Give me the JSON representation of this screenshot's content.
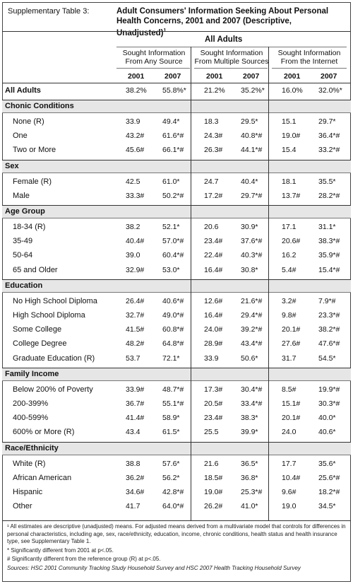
{
  "table_label": "Supplementary Table 3:",
  "title": "Adult Consumers' Information Seeking About Personal Health Concerns, 2001 and 2007 (Descriptive, Unadjusted)",
  "title_footnote_marker": "1",
  "super_header": "All Adults",
  "column_groups": [
    "Sought Information From Any Source",
    "Sought Information From Multiple Sources",
    "Sought Information From the Internet"
  ],
  "years": [
    "2001",
    "2007",
    "2001",
    "2007",
    "2001",
    "2007"
  ],
  "all_adults_row": {
    "label": "All Adults",
    "values": [
      "38.2%",
      "55.8%*",
      "21.2%",
      "35.2%*",
      "16.0%",
      "32.0%*"
    ]
  },
  "sections": [
    {
      "heading": "Chonic Conditions",
      "rows": [
        {
          "label": "None (R)",
          "values": [
            "33.9",
            "49.4*",
            "18.3",
            "29.5*",
            "15.1",
            "29.7*"
          ]
        },
        {
          "label": "One",
          "values": [
            "43.2#",
            "61.6*#",
            "24.3#",
            "40.8*#",
            "19.0#",
            "36.4*#"
          ]
        },
        {
          "label": "Two or More",
          "values": [
            "45.6#",
            "66.1*#",
            "26.3#",
            "44.1*#",
            "15.4",
            "33.2*#"
          ]
        }
      ]
    },
    {
      "heading": "Sex",
      "rows": [
        {
          "label": "Female (R)",
          "values": [
            "42.5",
            "61.0*",
            "24.7",
            "40.4*",
            "18.1",
            "35.5*"
          ]
        },
        {
          "label": "Male",
          "values": [
            "33.3#",
            "50.2*#",
            "17.2#",
            "29.7*#",
            "13.7#",
            "28.2*#"
          ]
        }
      ]
    },
    {
      "heading": "Age Group",
      "rows": [
        {
          "label": "18-34 (R)",
          "values": [
            "38.2",
            "52.1*",
            "20.6",
            "30.9*",
            "17.1",
            "31.1*"
          ]
        },
        {
          "label": "35-49",
          "values": [
            "40.4#",
            "57.0*#",
            "23.4#",
            "37.6*#",
            "20.6#",
            "38.3*#"
          ]
        },
        {
          "label": "50-64",
          "values": [
            "39.0",
            "60.4*#",
            "22.4#",
            "40.3*#",
            "16.2",
            "35.9*#"
          ]
        },
        {
          "label": "65 and Older",
          "values": [
            "32.9#",
            "53.0*",
            "16.4#",
            "30.8*",
            "5.4#",
            "15.4*#"
          ]
        }
      ]
    },
    {
      "heading": "Education",
      "rows": [
        {
          "label": "No High School Diploma",
          "values": [
            "26.4#",
            "40.6*#",
            "12.6#",
            "21.6*#",
            "3.2#",
            "7.9*#"
          ]
        },
        {
          "label": "High School Diploma",
          "values": [
            "32.7#",
            "49.0*#",
            "16.4#",
            "29.4*#",
            "9.8#",
            "23.3*#"
          ]
        },
        {
          "label": "Some College",
          "values": [
            "41.5#",
            "60.8*#",
            "24.0#",
            "39.2*#",
            "20.1#",
            "38.2*#"
          ]
        },
        {
          "label": "College Degree",
          "values": [
            "48.2#",
            "64.8*#",
            "28.9#",
            "43.4*#",
            "27.6#",
            "47.6*#"
          ]
        },
        {
          "label": "Graduate Education (R)",
          "values": [
            "53.7",
            "72.1*",
            "33.9",
            "50.6*",
            "31.7",
            "54.5*"
          ]
        }
      ]
    },
    {
      "heading": "Family Income",
      "rows": [
        {
          "label": "Below 200% of Poverty",
          "values": [
            "33.9#",
            "48.7*#",
            "17.3#",
            "30.4*#",
            "8.5#",
            "19.9*#"
          ]
        },
        {
          "label": "200-399%",
          "values": [
            "36.7#",
            "55.1*#",
            "20.5#",
            "33.4*#",
            "15.1#",
            "30.3*#"
          ]
        },
        {
          "label": "400-599%",
          "values": [
            "41.4#",
            "58.9*",
            "23.4#",
            "38.3*",
            "20.1#",
            "40.0*"
          ]
        },
        {
          "label": "600% or More (R)",
          "values": [
            "43.4",
            "61.5*",
            "25.5",
            "39.9*",
            "24.0",
            "40.6*"
          ]
        }
      ]
    },
    {
      "heading": "Race/Ethnicity",
      "rows": [
        {
          "label": "White (R)",
          "values": [
            "38.8",
            "57.6*",
            "21.6",
            "36.5*",
            "17.7",
            "35.6*"
          ]
        },
        {
          "label": "African American",
          "values": [
            "36.2#",
            "56.2*",
            "18.5#",
            "36.8*",
            "10.4#",
            "25.6*#"
          ]
        },
        {
          "label": "Hispanic",
          "values": [
            "34.6#",
            "42.8*#",
            "19.0#",
            "25.3*#",
            "9.6#",
            "18.2*#"
          ]
        },
        {
          "label": "Other",
          "values": [
            "41.7",
            "64.0*#",
            "26.2#",
            "41.0*",
            "19.0",
            "34.5*"
          ]
        }
      ]
    }
  ],
  "footnotes": {
    "note1": "¹ All estimates are descriptive (unadjusted) means. For adjusted means derived from a multivariate model that controls for differences in personal characteristics, including age, sex, race/ethnicity, education, income, chronic conditions, health status and health insurance type, see Supplementary Table 1.",
    "note2": "* Significantly different from 2001 at p<.05.",
    "note3": "# Significantly different from the reference group (R) at p<.05.",
    "sources": "Sources: HSC 2001 Community Tracking Study Household Survey and HSC 2007 Health Tracking Household Survey"
  },
  "colors": {
    "section_band": "#e6e6e6",
    "rule": "#333333"
  }
}
